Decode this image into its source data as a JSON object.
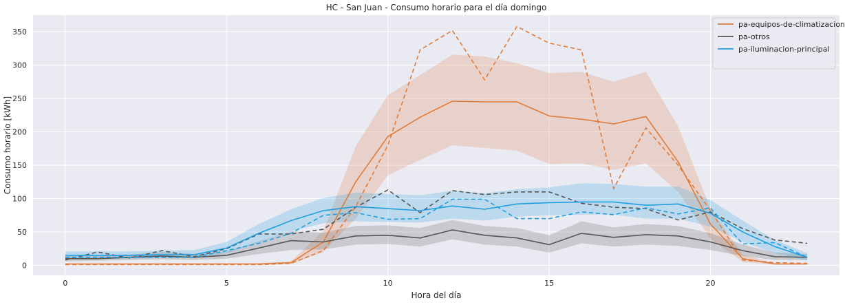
{
  "chart_data": {
    "type": "line",
    "title": "HC - San Juan - Consumo horario para el día domingo",
    "xlabel": "Hora del día",
    "ylabel": "Consumo horario [kWh]",
    "xlim": [
      -1,
      24
    ],
    "ylim": [
      -15,
      375
    ],
    "xticks": [
      0,
      5,
      10,
      15,
      20
    ],
    "yticks": [
      0,
      50,
      100,
      150,
      200,
      250,
      300,
      350
    ],
    "grid": true,
    "legend_position": "top-right",
    "x": [
      0,
      1,
      2,
      3,
      4,
      5,
      6,
      7,
      8,
      9,
      10,
      11,
      12,
      13,
      14,
      15,
      16,
      17,
      18,
      19,
      20,
      21,
      22,
      23
    ],
    "series": [
      {
        "name": "pa-equipos-de-climatizacion",
        "color": "#e07b39",
        "values": [
          2,
          2,
          2,
          2,
          2,
          2,
          2,
          4,
          35,
          125,
          193,
          222,
          246,
          245,
          245,
          224,
          219,
          212,
          223,
          155,
          62,
          10,
          2,
          2
        ],
        "band_low": [
          1,
          1,
          1,
          1,
          1,
          1,
          1,
          2,
          20,
          70,
          135,
          158,
          180,
          176,
          172,
          152,
          153,
          143,
          153,
          110,
          40,
          5,
          1,
          1
        ],
        "band_high": [
          3,
          3,
          3,
          3,
          3,
          3,
          3,
          6,
          52,
          178,
          255,
          285,
          316,
          313,
          303,
          288,
          290,
          275,
          290,
          208,
          85,
          16,
          3,
          3
        ],
        "dashed": [
          1,
          1,
          1,
          1,
          1,
          1,
          1,
          3,
          22,
          88,
          180,
          323,
          352,
          278,
          358,
          333,
          323,
          115,
          206,
          150,
          82,
          8,
          4,
          3
        ]
      },
      {
        "name": "pa-otros",
        "color": "#555555",
        "values": [
          10,
          10,
          12,
          14,
          12,
          15,
          26,
          37,
          35,
          44,
          45,
          41,
          53,
          45,
          41,
          31,
          48,
          42,
          46,
          44,
          35,
          22,
          13,
          12
        ],
        "band_low": [
          6,
          7,
          8,
          9,
          8,
          10,
          17,
          23,
          24,
          31,
          32,
          28,
          39,
          31,
          28,
          19,
          33,
          28,
          31,
          29,
          23,
          14,
          8,
          8
        ],
        "band_high": [
          14,
          14,
          16,
          20,
          17,
          21,
          36,
          51,
          49,
          59,
          60,
          56,
          68,
          59,
          56,
          45,
          66,
          57,
          62,
          59,
          48,
          31,
          19,
          17
        ],
        "dashed": [
          8,
          20,
          11,
          22,
          13,
          25,
          47,
          47,
          54,
          87,
          113,
          79,
          112,
          106,
          110,
          110,
          93,
          87,
          85,
          68,
          80,
          55,
          38,
          33
        ]
      },
      {
        "name": "pa-iluminacion-principal",
        "color": "#1f9ede",
        "values": [
          15,
          15,
          15,
          16,
          16,
          26,
          48,
          67,
          82,
          88,
          85,
          82,
          89,
          84,
          92,
          94,
          95,
          95,
          90,
          92,
          78,
          50,
          28,
          12
        ],
        "band_low": [
          10,
          10,
          10,
          11,
          11,
          18,
          34,
          51,
          63,
          66,
          65,
          64,
          70,
          67,
          73,
          75,
          76,
          76,
          70,
          70,
          58,
          35,
          18,
          7
        ],
        "band_high": [
          21,
          21,
          21,
          22,
          23,
          35,
          62,
          84,
          101,
          109,
          107,
          105,
          112,
          108,
          114,
          117,
          123,
          122,
          118,
          118,
          98,
          67,
          38,
          18
        ],
        "dashed": [
          12,
          12,
          12,
          12,
          12,
          22,
          33,
          48,
          75,
          79,
          69,
          70,
          99,
          99,
          70,
          70,
          80,
          76,
          86,
          77,
          86,
          32,
          34,
          12
        ]
      }
    ]
  }
}
